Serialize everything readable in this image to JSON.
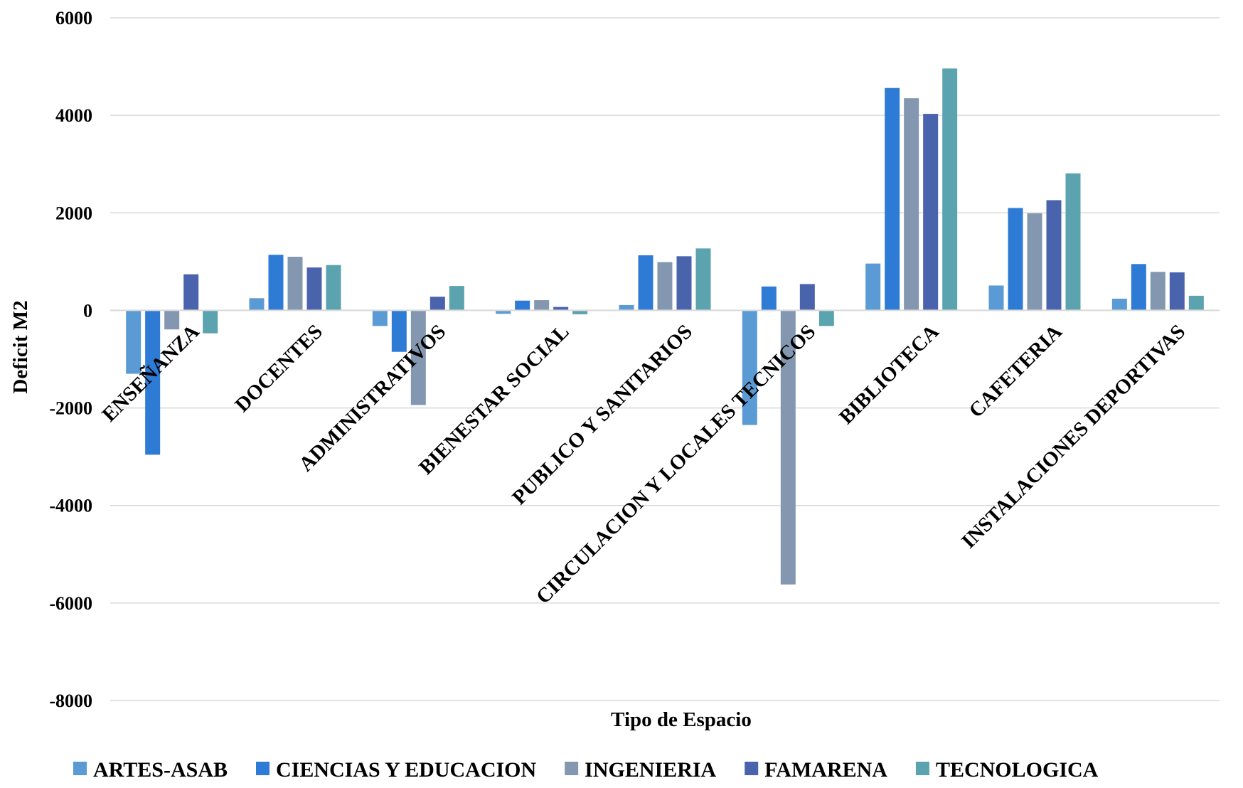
{
  "chart_data": {
    "type": "bar",
    "title": "",
    "xlabel": "Tipo de Espacio",
    "ylabel": "Deficit M2",
    "ylim": [
      -8000,
      6000
    ],
    "yticks": [
      6000,
      4000,
      2000,
      0,
      -2000,
      -4000,
      -6000,
      -8000
    ],
    "grid": true,
    "legend_position": "bottom",
    "categories": [
      "ENSEÑANZA",
      "DOCENTES",
      "ADMINISTRATIVOS",
      "BIENESTAR SOCIAL",
      "PUBLICO Y SANITARIOS",
      "CIRCULACION Y LOCALES TECNICOS",
      "BIBLIOTECA",
      "CAFETERIA",
      "INSTALACIONES DEPORTIVAS"
    ],
    "series": [
      {
        "name": "ARTES-ASAB",
        "color": "#5b9bd5",
        "values": [
          -1300,
          250,
          -320,
          -70,
          110,
          -2350,
          960,
          510,
          240
        ]
      },
      {
        "name": "CIENCIAS Y EDUCACION",
        "color": "#2e7bd6",
        "values": [
          -2960,
          1140,
          -850,
          200,
          1130,
          490,
          4560,
          2100,
          950
        ]
      },
      {
        "name": "INGENIERIA",
        "color": "#8497b0",
        "values": [
          -390,
          1100,
          -1940,
          210,
          990,
          -5620,
          4350,
          1990,
          790
        ]
      },
      {
        "name": "FAMARENA",
        "color": "#4a63ad",
        "values": [
          740,
          880,
          280,
          70,
          1110,
          540,
          4030,
          2260,
          780
        ]
      },
      {
        "name": "TECNOLOGICA",
        "color": "#5ba3ae",
        "values": [
          -470,
          930,
          500,
          -80,
          1270,
          -320,
          4960,
          2810,
          300
        ]
      }
    ]
  }
}
